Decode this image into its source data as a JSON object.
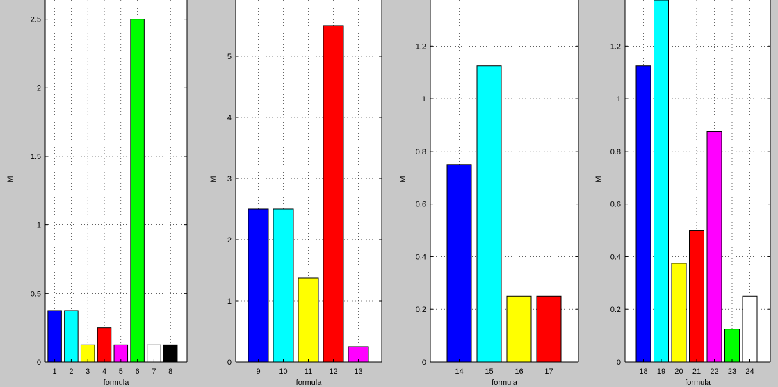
{
  "figure": {
    "background": "#c8c8c8"
  },
  "chart_data": [
    {
      "type": "bar",
      "xlabel": "formula",
      "ylabel": "M",
      "categories": [
        "1",
        "2",
        "3",
        "4",
        "5",
        "6",
        "7",
        "8"
      ],
      "values": [
        0.375,
        0.375,
        0.125,
        0.25,
        0.125,
        2.5,
        0.125,
        0.125
      ],
      "colors": [
        "#0000ff",
        "#00ffff",
        "#ffff00",
        "#ff0000",
        "#ff00ff",
        "#00ff00",
        "#ffffff",
        "#000000"
      ],
      "ylim": [
        0,
        2.5
      ],
      "yticks": [
        0,
        0.5,
        1,
        1.5,
        2,
        2.5
      ],
      "ytick_labels": [
        "0",
        "0.5",
        "1",
        "1.5",
        "2",
        "2.5"
      ],
      "grid": true
    },
    {
      "type": "bar",
      "xlabel": "formula",
      "ylabel": "M",
      "categories": [
        "9",
        "10",
        "11",
        "12",
        "13"
      ],
      "values": [
        2.5,
        2.5,
        1.375,
        5.5,
        0.25
      ],
      "colors": [
        "#0000ff",
        "#00ffff",
        "#ffff00",
        "#ff0000",
        "#ff00ff"
      ],
      "ylim": [
        0,
        5.5
      ],
      "yticks": [
        0,
        1,
        2,
        3,
        4,
        5
      ],
      "ytick_labels": [
        "0",
        "1",
        "2",
        "3",
        "4",
        "5"
      ],
      "grid": true
    },
    {
      "type": "bar",
      "xlabel": "formula",
      "ylabel": "M",
      "categories": [
        "14",
        "15",
        "16",
        "17"
      ],
      "values": [
        0.75,
        1.125,
        0.25,
        0.25
      ],
      "colors": [
        "#0000ff",
        "#00ffff",
        "#ffff00",
        "#ff0000"
      ],
      "ylim": [
        0,
        1.375
      ],
      "yticks": [
        0,
        0.2,
        0.4,
        0.6,
        0.8,
        1,
        1.2
      ],
      "ytick_labels": [
        "0",
        "0.2",
        "0.4",
        "0.6",
        "0.8",
        "1",
        "1.2"
      ],
      "grid": true
    },
    {
      "type": "bar",
      "xlabel": "formula",
      "ylabel": "M",
      "categories": [
        "18",
        "19",
        "20",
        "21",
        "22",
        "23",
        "24"
      ],
      "values": [
        1.125,
        1.375,
        0.375,
        0.5,
        0.875,
        0.125,
        0.25
      ],
      "colors": [
        "#0000ff",
        "#00ffff",
        "#ffff00",
        "#ff0000",
        "#ff00ff",
        "#00ff00",
        "#ffffff"
      ],
      "ylim": [
        0,
        1.375
      ],
      "yticks": [
        0,
        0.2,
        0.4,
        0.6,
        0.8,
        1,
        1.2
      ],
      "ytick_labels": [
        "0",
        "0.2",
        "0.4",
        "0.6",
        "0.8",
        "1",
        "1.2"
      ],
      "grid": true
    }
  ]
}
